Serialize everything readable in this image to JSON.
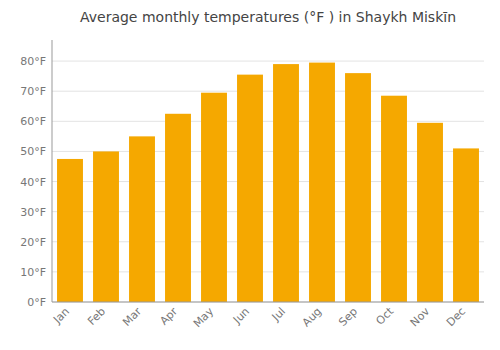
{
  "chart_data": {
    "type": "bar",
    "title": "Average monthly temperatures (°F ) in Shaykh Miskīn",
    "categories": [
      "Jan",
      "Feb",
      "Mar",
      "Apr",
      "May",
      "Jun",
      "Jul",
      "Aug",
      "Sep",
      "Oct",
      "Nov",
      "Dec"
    ],
    "values": [
      47.5,
      50.0,
      55.0,
      62.5,
      69.5,
      75.5,
      79.0,
      79.5,
      76.0,
      68.5,
      59.5,
      51.0
    ],
    "color": "#F5A800",
    "ylim": [
      0,
      87
    ],
    "yticks": [
      {
        "value": 0,
        "label": "0°F"
      },
      {
        "value": 10,
        "label": "10°F"
      },
      {
        "value": 20,
        "label": "20°F"
      },
      {
        "value": 30,
        "label": "30°F"
      },
      {
        "value": 40,
        "label": "40°F"
      },
      {
        "value": 50,
        "label": "50°F"
      },
      {
        "value": 60,
        "label": "60°F"
      },
      {
        "value": 70,
        "label": "70°F"
      },
      {
        "value": 80,
        "label": "80°F"
      }
    ],
    "grid": true
  }
}
